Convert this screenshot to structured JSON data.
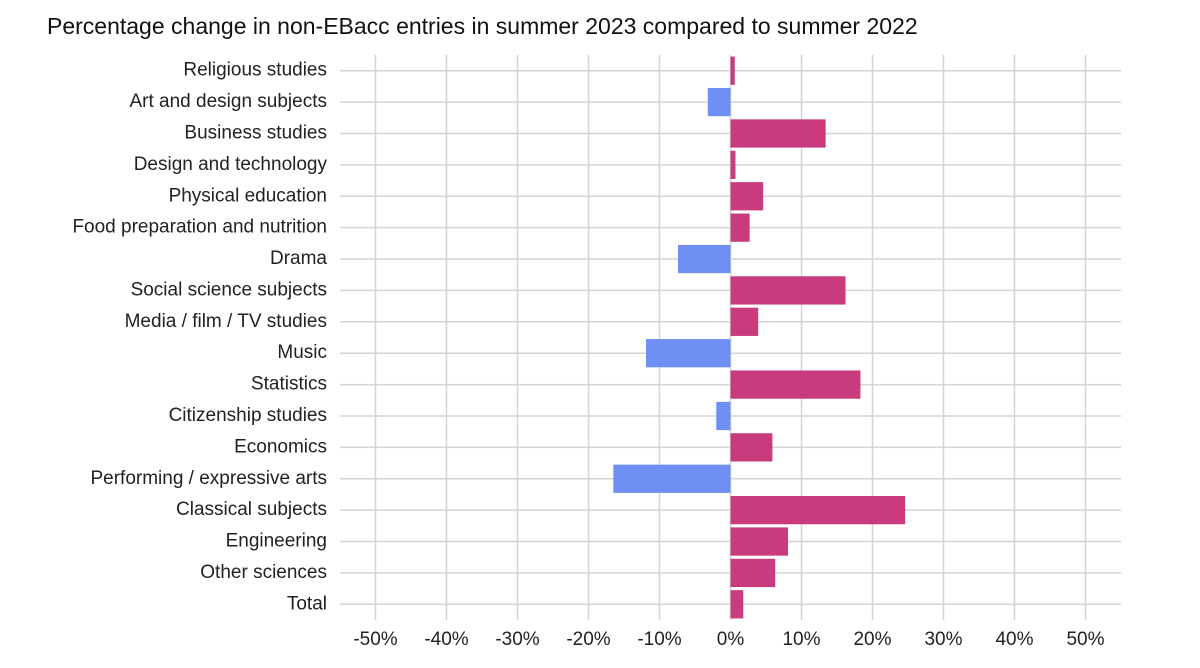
{
  "chart_data": {
    "type": "hbar",
    "title": "Percentage change in non-EBacc entries in summer 2023 compared to summer 2022",
    "categories": [
      "Religious studies",
      "Art and design subjects",
      "Business studies",
      "Design and technology",
      "Physical education",
      "Food preparation and nutrition",
      "Drama",
      "Social science subjects",
      "Media / film / TV studies",
      "Music",
      "Statistics",
      "Citizenship studies",
      "Economics",
      "Performing / expressive arts",
      "Classical subjects",
      "Engineering",
      "Other sciences",
      "Total"
    ],
    "values": [
      0.6,
      -3.2,
      13.4,
      0.7,
      4.6,
      2.7,
      -7.4,
      16.2,
      3.9,
      -11.9,
      18.3,
      -2.0,
      5.9,
      -16.5,
      24.6,
      8.1,
      6.3,
      1.8
    ],
    "positive_color": "#c93b7c",
    "negative_color": "#6f8ff5",
    "xlim": [
      -55,
      55
    ],
    "xticks": [
      {
        "value": -50,
        "label": "-50%"
      },
      {
        "value": -40,
        "label": "-40%"
      },
      {
        "value": -30,
        "label": "-30%"
      },
      {
        "value": -20,
        "label": "-20%"
      },
      {
        "value": -10,
        "label": "-10%"
      },
      {
        "value": 0,
        "label": "0%"
      },
      {
        "value": 10,
        "label": "10%"
      },
      {
        "value": 20,
        "label": "20%"
      },
      {
        "value": 30,
        "label": "30%"
      },
      {
        "value": 40,
        "label": "40%"
      },
      {
        "value": 50,
        "label": "50%"
      }
    ],
    "grid": true
  }
}
